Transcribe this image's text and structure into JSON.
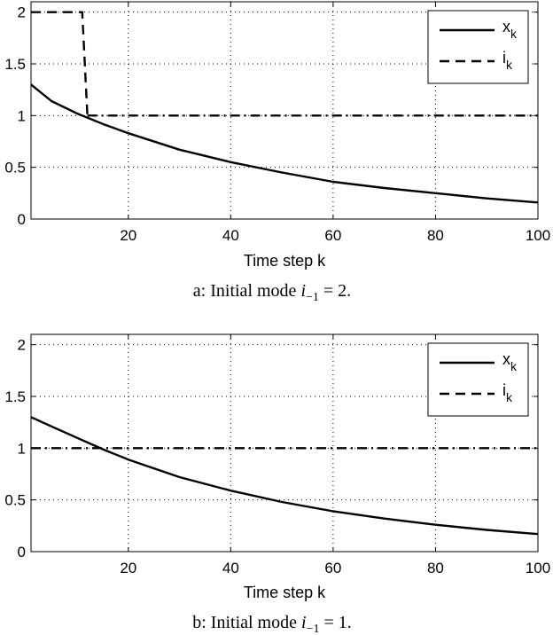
{
  "chart_data": [
    {
      "type": "line",
      "caption": "a: Initial mode i_{-1} = 2.",
      "caption_parts": {
        "prefix": "a: Initial mode ",
        "var": "i",
        "sub": "−1",
        "suffix": " = 2."
      },
      "xlabel": "Time step k",
      "xlim": [
        1,
        100
      ],
      "ylim": [
        0,
        2.1
      ],
      "xticks": [
        20,
        40,
        60,
        80,
        100
      ],
      "yticks": [
        0,
        0.5,
        1,
        1.5,
        2
      ],
      "grid": true,
      "legend_position": "top-right",
      "series": [
        {
          "name": "x",
          "name_sub": "k",
          "style": "solid",
          "x": [
            1,
            5,
            10,
            15,
            20,
            30,
            40,
            50,
            60,
            70,
            80,
            90,
            100
          ],
          "y": [
            1.3,
            1.14,
            1.02,
            0.92,
            0.83,
            0.67,
            0.55,
            0.45,
            0.36,
            0.3,
            0.25,
            0.2,
            0.16
          ]
        },
        {
          "name": "i",
          "name_sub": "k",
          "style": "dashed",
          "x": [
            1,
            11,
            12
          ],
          "y": [
            2,
            2,
            1
          ]
        },
        {
          "style": "dashdot",
          "x": [
            12,
            100
          ],
          "y": [
            1,
            1
          ]
        }
      ]
    },
    {
      "type": "line",
      "caption": "b: Initial mode i_{-1} = 1.",
      "caption_parts": {
        "prefix": "b: Initial mode ",
        "var": "i",
        "sub": "−1",
        "suffix": " = 1."
      },
      "xlabel": "Time step k",
      "xlim": [
        1,
        100
      ],
      "ylim": [
        0,
        2.1
      ],
      "xticks": [
        20,
        40,
        60,
        80,
        100
      ],
      "yticks": [
        0,
        0.5,
        1,
        1.5,
        2
      ],
      "grid": true,
      "legend_position": "top-right",
      "series": [
        {
          "name": "x",
          "name_sub": "k",
          "style": "solid",
          "x": [
            1,
            5,
            10,
            15,
            20,
            30,
            40,
            50,
            60,
            70,
            80,
            90,
            100
          ],
          "y": [
            1.3,
            1.21,
            1.1,
            0.99,
            0.89,
            0.72,
            0.59,
            0.48,
            0.39,
            0.32,
            0.26,
            0.21,
            0.17
          ]
        },
        {
          "name": "i",
          "name_sub": "k",
          "style": "dashed",
          "x": [],
          "y": []
        },
        {
          "style": "dashdot",
          "x": [
            1,
            100
          ],
          "y": [
            1,
            1
          ]
        }
      ]
    }
  ]
}
